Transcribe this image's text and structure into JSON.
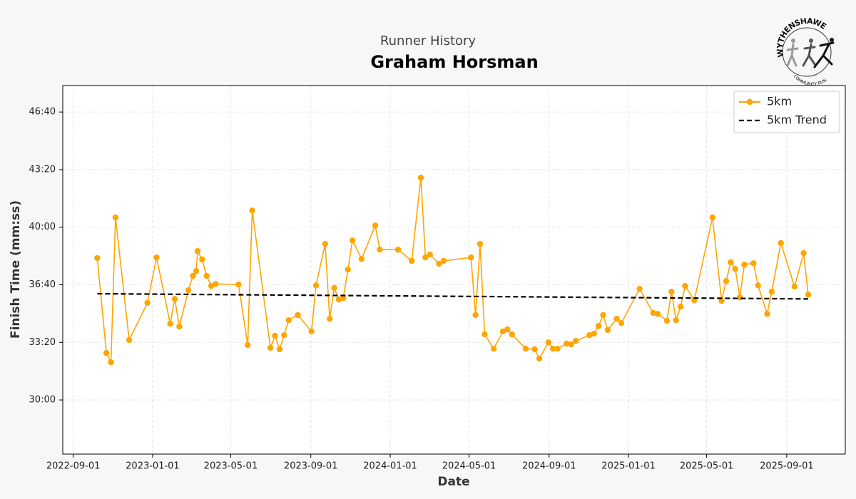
{
  "chart_data": {
    "type": "line",
    "subtitle": "Runner History",
    "title": "Graham Horsman",
    "logo": {
      "top_text": "WYTHENSHAWE",
      "bottom_text": "COMMUNITY RUN"
    },
    "xlabel": "Date",
    "ylabel": "Finish Time (mm:ss)",
    "xlim": [
      "2022-08-16",
      "2025-11-30"
    ],
    "xticks": [
      "2022-09-01",
      "2023-01-01",
      "2023-05-01",
      "2023-09-01",
      "2024-01-01",
      "2024-05-01",
      "2024-09-01",
      "2025-01-01",
      "2025-05-01",
      "2025-09-01"
    ],
    "ylim": [
      1612,
      2892
    ],
    "yticks": [
      {
        "value": 1800,
        "label": "30:00"
      },
      {
        "value": 2000,
        "label": "33:20"
      },
      {
        "value": 2200,
        "label": "36:40"
      },
      {
        "value": 2400,
        "label": "40:00"
      },
      {
        "value": 2600,
        "label": "43:20"
      },
      {
        "value": 2800,
        "label": "46:40"
      }
    ],
    "grid": true,
    "legend": "upper right",
    "series": [
      {
        "name": "5km",
        "color": "#ffa500",
        "style": "solid",
        "markers": true,
        "x": [
          "2022-10-08",
          "2022-10-22",
          "2022-10-29",
          "2022-11-05",
          "2022-11-26",
          "2022-12-24",
          "2023-01-07",
          "2023-01-28",
          "2023-02-04",
          "2023-02-11",
          "2023-02-25",
          "2023-03-04",
          "2023-03-09",
          "2023-03-11",
          "2023-03-18",
          "2023-03-25",
          "2023-04-01",
          "2023-04-08",
          "2023-05-13",
          "2023-05-27",
          "2023-06-03",
          "2023-07-01",
          "2023-07-08",
          "2023-07-15",
          "2023-07-22",
          "2023-07-29",
          "2023-08-12",
          "2023-09-02",
          "2023-09-09",
          "2023-09-23",
          "2023-09-30",
          "2023-10-07",
          "2023-10-14",
          "2023-10-21",
          "2023-10-28",
          "2023-11-04",
          "2023-11-18",
          "2023-12-09",
          "2023-12-16",
          "2024-01-13",
          "2024-02-03",
          "2024-02-17",
          "2024-02-24",
          "2024-03-02",
          "2024-03-16",
          "2024-03-23",
          "2024-05-04",
          "2024-05-11",
          "2024-05-18",
          "2024-05-25",
          "2024-06-08",
          "2024-06-22",
          "2024-06-29",
          "2024-07-06",
          "2024-07-27",
          "2024-08-10",
          "2024-08-17",
          "2024-08-31",
          "2024-09-07",
          "2024-09-14",
          "2024-09-28",
          "2024-10-05",
          "2024-10-12",
          "2024-11-02",
          "2024-11-09",
          "2024-11-16",
          "2024-11-23",
          "2024-11-30",
          "2024-12-14",
          "2024-12-21",
          "2025-01-18",
          "2025-02-08",
          "2025-02-15",
          "2025-03-01",
          "2025-03-08",
          "2025-03-15",
          "2025-03-22",
          "2025-03-29",
          "2025-04-12",
          "2025-05-10",
          "2025-05-24",
          "2025-05-31",
          "2025-06-07",
          "2025-06-14",
          "2025-06-21",
          "2025-06-28",
          "2025-07-12",
          "2025-07-19",
          "2025-08-02",
          "2025-08-09",
          "2025-08-23",
          "2025-09-13",
          "2025-09-27",
          "2025-10-04"
        ],
        "values": [
          2293,
          1963,
          1931,
          2434,
          2008,
          2137,
          2295,
          2065,
          2151,
          2055,
          2181,
          2231,
          2248,
          2317,
          2288,
          2231,
          2196,
          2203,
          2201,
          1991,
          2458,
          1981,
          2023,
          1976,
          2025,
          2077,
          2095,
          2038,
          2198,
          2342,
          2082,
          2189,
          2149,
          2154,
          2253,
          2354,
          2290,
          2406,
          2322,
          2322,
          2283,
          2572,
          2295,
          2305,
          2273,
          2283,
          2295,
          2095,
          2342,
          2028,
          1978,
          2038,
          2045,
          2028,
          1978,
          1976,
          1944,
          2000,
          1978,
          1978,
          1996,
          1993,
          2005,
          2025,
          2030,
          2057,
          2095,
          2043,
          2082,
          2067,
          2186,
          2102,
          2099,
          2075,
          2176,
          2077,
          2124,
          2196,
          2146,
          2434,
          2144,
          2213,
          2278,
          2255,
          2156,
          2270,
          2275,
          2198,
          2099,
          2176,
          2345,
          2194,
          2310,
          2166
        ]
      },
      {
        "name": "5km Trend",
        "color": "#000000",
        "style": "dashed",
        "markers": false,
        "x": [
          "2022-10-08",
          "2025-10-04"
        ],
        "values": [
          2169,
          2151
        ]
      }
    ]
  }
}
